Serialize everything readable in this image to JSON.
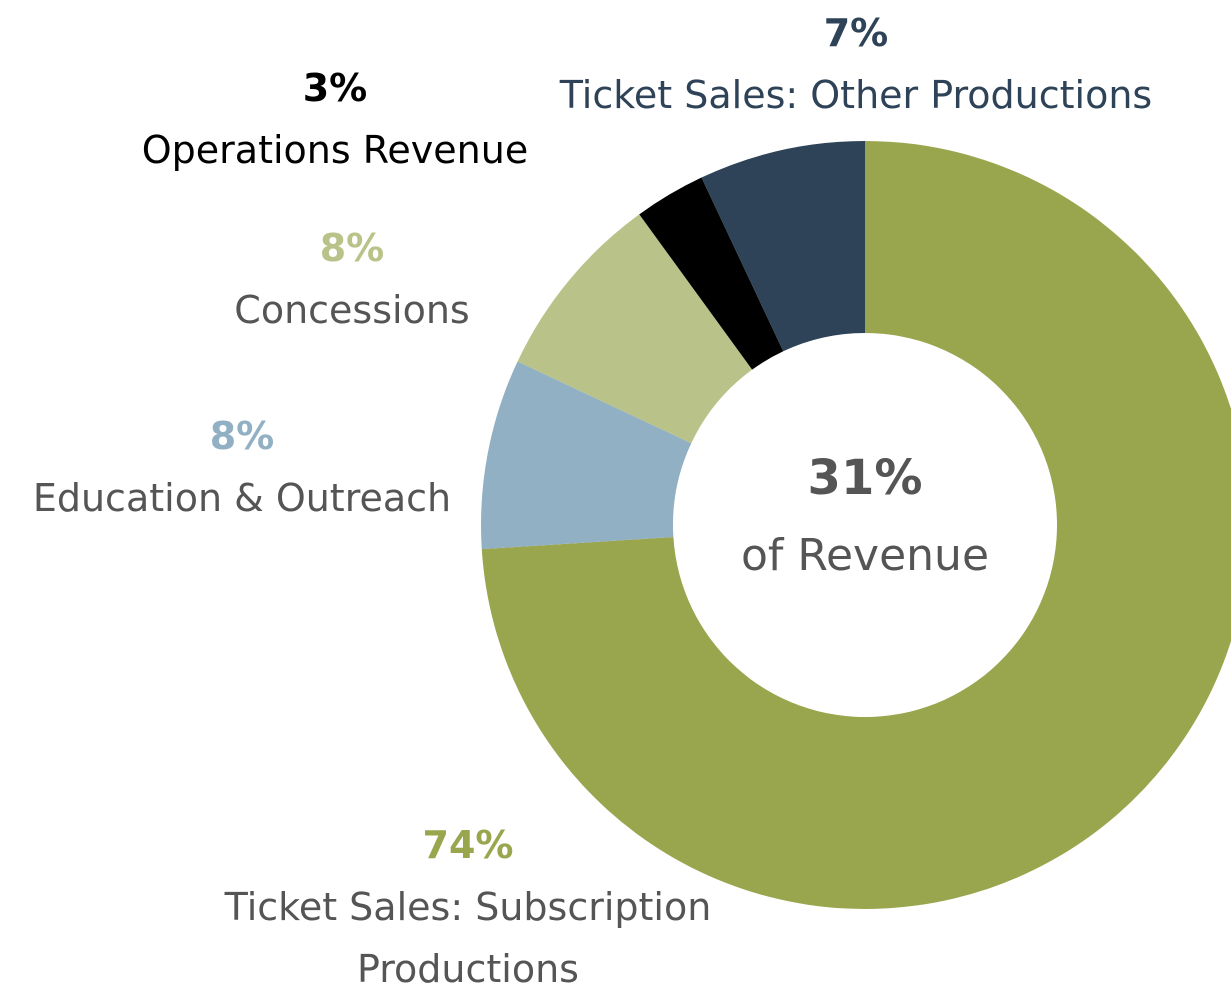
{
  "chart_data": {
    "type": "donut",
    "categories": [
      "Ticket Sales: Subscription Productions",
      "Education & Outreach",
      "Concessions",
      "Operations Revenue",
      "Ticket Sales: Other Productions"
    ],
    "values": [
      74,
      8,
      8,
      3,
      7
    ],
    "value_labels": [
      "74%",
      "8%",
      "8%",
      "3%",
      "7%"
    ],
    "colors": [
      "#9aa64e",
      "#92b0c4",
      "#b9c389",
      "#000000",
      "#2e4357"
    ],
    "center_value": "31%",
    "center_text": "of Revenue"
  }
}
